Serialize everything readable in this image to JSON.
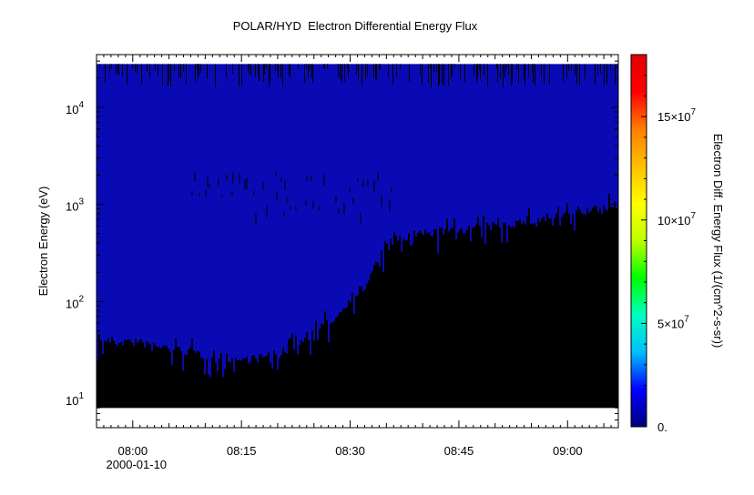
{
  "chart_data": {
    "type": "heatmap",
    "title": "POLAR/HYD  Electron Differential Energy Flux",
    "ylabel": "Electron Energy (eV)",
    "yscale": "log",
    "ylim": [
      5,
      35000
    ],
    "x_range": [
      "07:55",
      "09:07"
    ],
    "x_ticks": [
      "08:00",
      "08:15",
      "08:30",
      "08:45",
      "09:00"
    ],
    "x_date_label": "2000-01-10",
    "y_ticks": [
      {
        "value": 10,
        "base": "10",
        "exp": "1"
      },
      {
        "value": 100,
        "base": "10",
        "exp": "2"
      },
      {
        "value": 1000,
        "base": "10",
        "exp": "3"
      },
      {
        "value": 10000,
        "base": "10",
        "exp": "4"
      }
    ],
    "data_energy_range": [
      8,
      28000
    ],
    "colorbar": {
      "label": "Electron Diff. Energy Flux (1/(cm^2-s-sr))",
      "range": [
        0,
        180000000
      ],
      "ticks": [
        {
          "value": 0,
          "label": "0."
        },
        {
          "value": 50000000,
          "base": "5×10",
          "exp": "7"
        },
        {
          "value": 100000000,
          "base": "10×10",
          "exp": "7"
        },
        {
          "value": 150000000,
          "base": "15×10",
          "exp": "7"
        }
      ],
      "colormap": [
        "#00007f",
        "#0000ff",
        "#00bfff",
        "#00ffbf",
        "#00ff00",
        "#bfff00",
        "#ffff00",
        "#ffbf00",
        "#ff7f00",
        "#ff0000",
        "#e00000"
      ]
    },
    "low_energy_cutoff": [
      {
        "t": "07:55",
        "e": 40
      },
      {
        "t": "08:00",
        "e": 38
      },
      {
        "t": "08:05",
        "e": 33
      },
      {
        "t": "08:10",
        "e": 28
      },
      {
        "t": "08:15",
        "e": 25
      },
      {
        "t": "08:20",
        "e": 28
      },
      {
        "t": "08:25",
        "e": 48
      },
      {
        "t": "08:28",
        "e": 70
      },
      {
        "t": "08:30",
        "e": 110
      },
      {
        "t": "08:32",
        "e": 140
      },
      {
        "t": "08:34",
        "e": 300
      },
      {
        "t": "08:36",
        "e": 420
      },
      {
        "t": "08:40",
        "e": 500
      },
      {
        "t": "08:45",
        "e": 550
      },
      {
        "t": "08:50",
        "e": 600
      },
      {
        "t": "08:55",
        "e": 680
      },
      {
        "t": "09:00",
        "e": 780
      },
      {
        "t": "09:04",
        "e": 900
      },
      {
        "t": "09:07",
        "e": 1000
      }
    ],
    "background_flux": 8000000,
    "no_data_color": "#000000",
    "fill_color": "#0a0ab4"
  }
}
